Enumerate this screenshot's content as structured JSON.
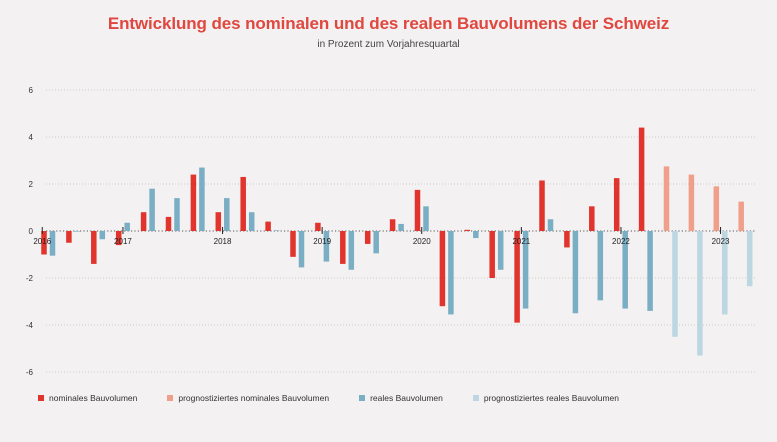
{
  "title": "Entwicklung des nominalen und des realen Bauvolumens der Schweiz",
  "subtitle": "in Prozent zum Vorjahresquartal",
  "colors": {
    "nominal": "#e0342c",
    "nominal_forecast": "#f0a08a",
    "real": "#7aaec4",
    "real_forecast": "#bcd6e2",
    "title": "#e0473f",
    "background": "#f3f1f1"
  },
  "legend": [
    {
      "label": "nominales Bauvolumen",
      "color_key": "nominal"
    },
    {
      "label": "prognostiziertes nominales Bauvolumen",
      "color_key": "nominal_forecast"
    },
    {
      "label": "reales Bauvolumen",
      "color_key": "real"
    },
    {
      "label": "prognostiziertes reales Bauvolumen",
      "color_key": "real_forecast"
    }
  ],
  "chart_data": {
    "type": "bar",
    "title": "Entwicklung des nominalen und des realen Bauvolumens der Schweiz",
    "subtitle": "in Prozent zum Vorjahresquartal",
    "xlabel": "",
    "ylabel": "",
    "ylim": [
      -6,
      6
    ],
    "yticks": [
      6,
      4,
      2,
      0,
      -2,
      -4,
      -6
    ],
    "grid": true,
    "legend_position": "bottom-left",
    "x_tick_labels": [
      {
        "index": 0,
        "label": "2016"
      },
      {
        "index": 3,
        "label": "2017"
      },
      {
        "index": 7,
        "label": "2018"
      },
      {
        "index": 11,
        "label": "2019"
      },
      {
        "index": 15,
        "label": "2020"
      },
      {
        "index": 19,
        "label": "2021"
      },
      {
        "index": 23,
        "label": "2022"
      },
      {
        "index": 27,
        "label": "2023"
      }
    ],
    "forecast_start_index": 25,
    "series": [
      {
        "name": "nominales Bauvolumen",
        "values": [
          -1.0,
          -0.5,
          -1.4,
          -0.6,
          0.8,
          0.6,
          2.4,
          0.8,
          2.3,
          0.4,
          -1.1,
          0.35,
          -1.4,
          -0.55,
          0.5,
          1.75,
          -3.2,
          0.05,
          -2.0,
          -3.9,
          2.15,
          -0.7,
          1.05,
          2.25,
          4.4,
          2.75,
          2.4,
          1.9,
          1.25
        ]
      },
      {
        "name": "reales Bauvolumen",
        "values": [
          -1.05,
          -0.02,
          -0.35,
          0.35,
          1.8,
          1.4,
          2.7,
          1.4,
          0.8,
          0.03,
          -1.55,
          -1.3,
          -1.65,
          -0.95,
          0.3,
          1.05,
          -3.55,
          -0.3,
          -1.65,
          -3.3,
          0.5,
          -3.5,
          -2.95,
          -3.3,
          -3.4,
          -4.5,
          -5.3,
          -3.55,
          -2.35
        ]
      }
    ]
  }
}
